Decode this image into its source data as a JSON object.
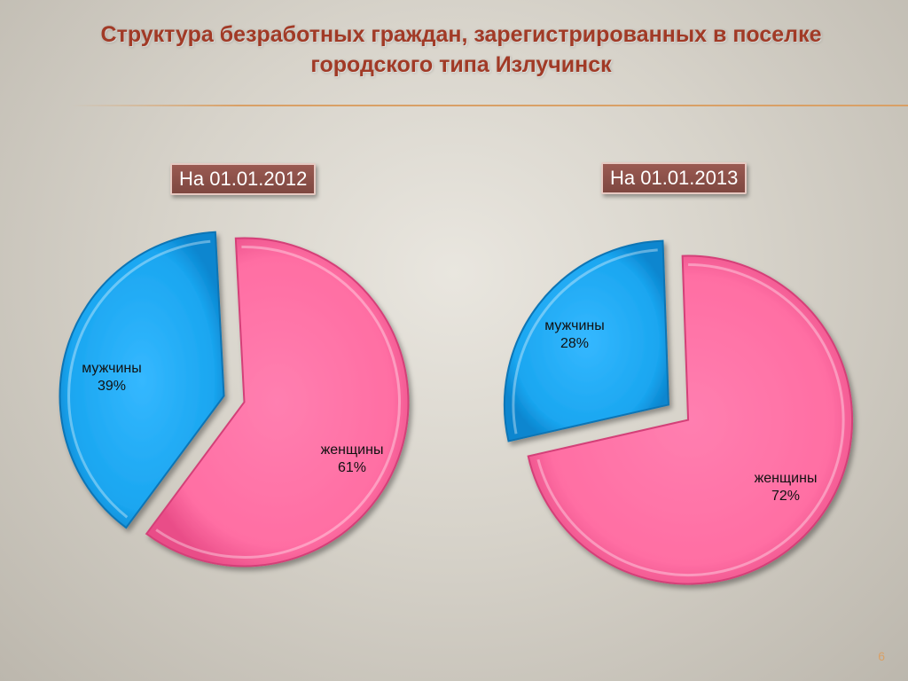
{
  "title": {
    "line1": "Структура безработных граждан, зарегистрированных в поселке",
    "line2": "городского типа Излучинск"
  },
  "page_number": "6",
  "colors": {
    "men": "#1aa6f0",
    "women": "#ff6ea3",
    "title": "#a13a26",
    "date_box": "#8b4f48"
  },
  "chart_data": [
    {
      "type": "pie",
      "title": "На 01.01.2012",
      "slices": [
        {
          "label": "мужчины",
          "value": 39,
          "value_label": "39%"
        },
        {
          "label": "женщины",
          "value": 61,
          "value_label": "61%"
        }
      ]
    },
    {
      "type": "pie",
      "title": "На 01.01.2013",
      "slices": [
        {
          "label": "мужчины",
          "value": 28,
          "value_label": "28%"
        },
        {
          "label": "женщины",
          "value": 72,
          "value_label": "72%"
        }
      ]
    }
  ]
}
